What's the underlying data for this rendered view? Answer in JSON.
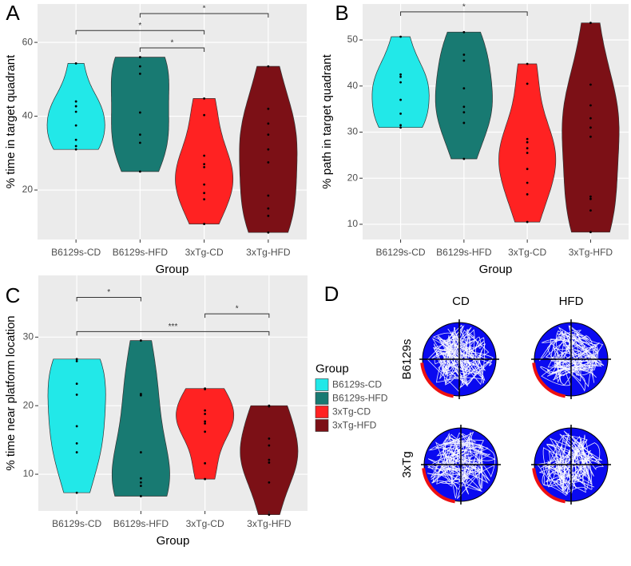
{
  "chart_data": [
    {
      "type": "violin",
      "label": "A",
      "x_label": "Group",
      "y_label": "% time in target quadrant",
      "ylim": [
        6.6,
        70.4
      ],
      "yticks": [
        20,
        40,
        60
      ],
      "grid": true,
      "series": [
        {
          "name": "B6129s-CD",
          "color": "#22e8e8",
          "values": [
            54.3,
            44,
            42.7,
            41.2,
            37.5,
            33.6,
            31.9,
            31
          ]
        },
        {
          "name": "B6129s-HFD",
          "color": "#187a72",
          "values": [
            56,
            53.5,
            51.5,
            41,
            35,
            32.8,
            25
          ]
        },
        {
          "name": "3xTg-CD",
          "color": "#ff2222",
          "values": [
            44.8,
            40.3,
            29.3,
            27,
            26.2,
            21.5,
            19.2,
            17.5,
            10.8
          ]
        },
        {
          "name": "3xTg-HFD",
          "color": "#7c1016",
          "values": [
            53.5,
            42,
            38,
            35,
            31,
            27.5,
            18.5,
            15,
            13,
            8.5
          ]
        }
      ],
      "annotations": [
        {
          "text": "*",
          "y": 67.8,
          "start": "B6129s-HFD",
          "end": "3xTg-HFD"
        },
        {
          "text": "*",
          "y": 63.2,
          "start": "B6129s-CD",
          "end": "3xTg-CD"
        },
        {
          "text": "*",
          "y": 58.5,
          "start": "B6129s-HFD",
          "end": "3xTg-CD"
        }
      ]
    },
    {
      "type": "violin",
      "label": "B",
      "x_label": "Group",
      "y_label": "% path in target quadrant",
      "ylim": [
        6.7,
        57.8
      ],
      "yticks": [
        10,
        20,
        30,
        40,
        50
      ],
      "grid": true,
      "series": [
        {
          "name": "B6129s-CD",
          "color": "#22e8e8",
          "values": [
            50.7,
            42.5,
            42,
            40.8,
            37,
            34,
            31.5,
            31
          ]
        },
        {
          "name": "B6129s-HFD",
          "color": "#187a72",
          "values": [
            51.7,
            46.8,
            45.5,
            39.5,
            35.5,
            34.3,
            32,
            24.2
          ]
        },
        {
          "name": "3xTg-CD",
          "color": "#ff2222",
          "values": [
            44.8,
            40.5,
            28.5,
            27.8,
            26.5,
            25.5,
            22,
            19,
            16.5,
            10.5
          ]
        },
        {
          "name": "3xTg-HFD",
          "color": "#7c1016",
          "values": [
            53.7,
            40.3,
            35.8,
            33,
            31,
            29,
            16,
            15.5,
            13,
            8.3
          ]
        }
      ],
      "annotations": [
        {
          "text": "*",
          "y": 56.1,
          "start": "B6129s-CD",
          "end": "3xTg-CD"
        }
      ]
    },
    {
      "type": "violin",
      "label": "C",
      "x_label": "Group",
      "y_label": "% time near platform location",
      "ylim": [
        4.65,
        39
      ],
      "yticks": [
        10,
        20,
        30
      ],
      "grid": true,
      "legend": {
        "title": "Group",
        "position": "right"
      },
      "series": [
        {
          "name": "B6129s-CD",
          "color": "#22e8e8",
          "values": [
            26.8,
            26.5,
            23.2,
            21.6,
            17,
            14.5,
            13.2,
            7.3
          ]
        },
        {
          "name": "B6129s-HFD",
          "color": "#187a72",
          "values": [
            29.5,
            21.7,
            21.5,
            13.2,
            9.4,
            8.8,
            8.3,
            6.8
          ]
        },
        {
          "name": "3xTg-CD",
          "color": "#ff2222",
          "values": [
            22.5,
            22.4,
            19.3,
            18.8,
            17.7,
            17.4,
            16.2,
            11.6,
            9.3
          ]
        },
        {
          "name": "3xTg-HFD",
          "color": "#7c1016",
          "values": [
            20,
            19.9,
            15.2,
            14.2,
            12.1,
            11.7,
            8.8,
            4.1
          ]
        }
      ],
      "annotations": [
        {
          "text": "*",
          "y": 35.8,
          "start": "B6129s-CD",
          "end": "B6129s-HFD"
        },
        {
          "text": "*",
          "y": 33.4,
          "start": "3xTg-CD",
          "end": "3xTg-HFD"
        },
        {
          "text": "***",
          "y": 30.8,
          "start": "B6129s-CD",
          "end": "3xTg-HFD"
        }
      ]
    }
  ],
  "panel_d": {
    "label": "D",
    "columns": [
      "CD",
      "HFD"
    ],
    "rows": [
      "B6129s",
      "3xTg"
    ]
  }
}
